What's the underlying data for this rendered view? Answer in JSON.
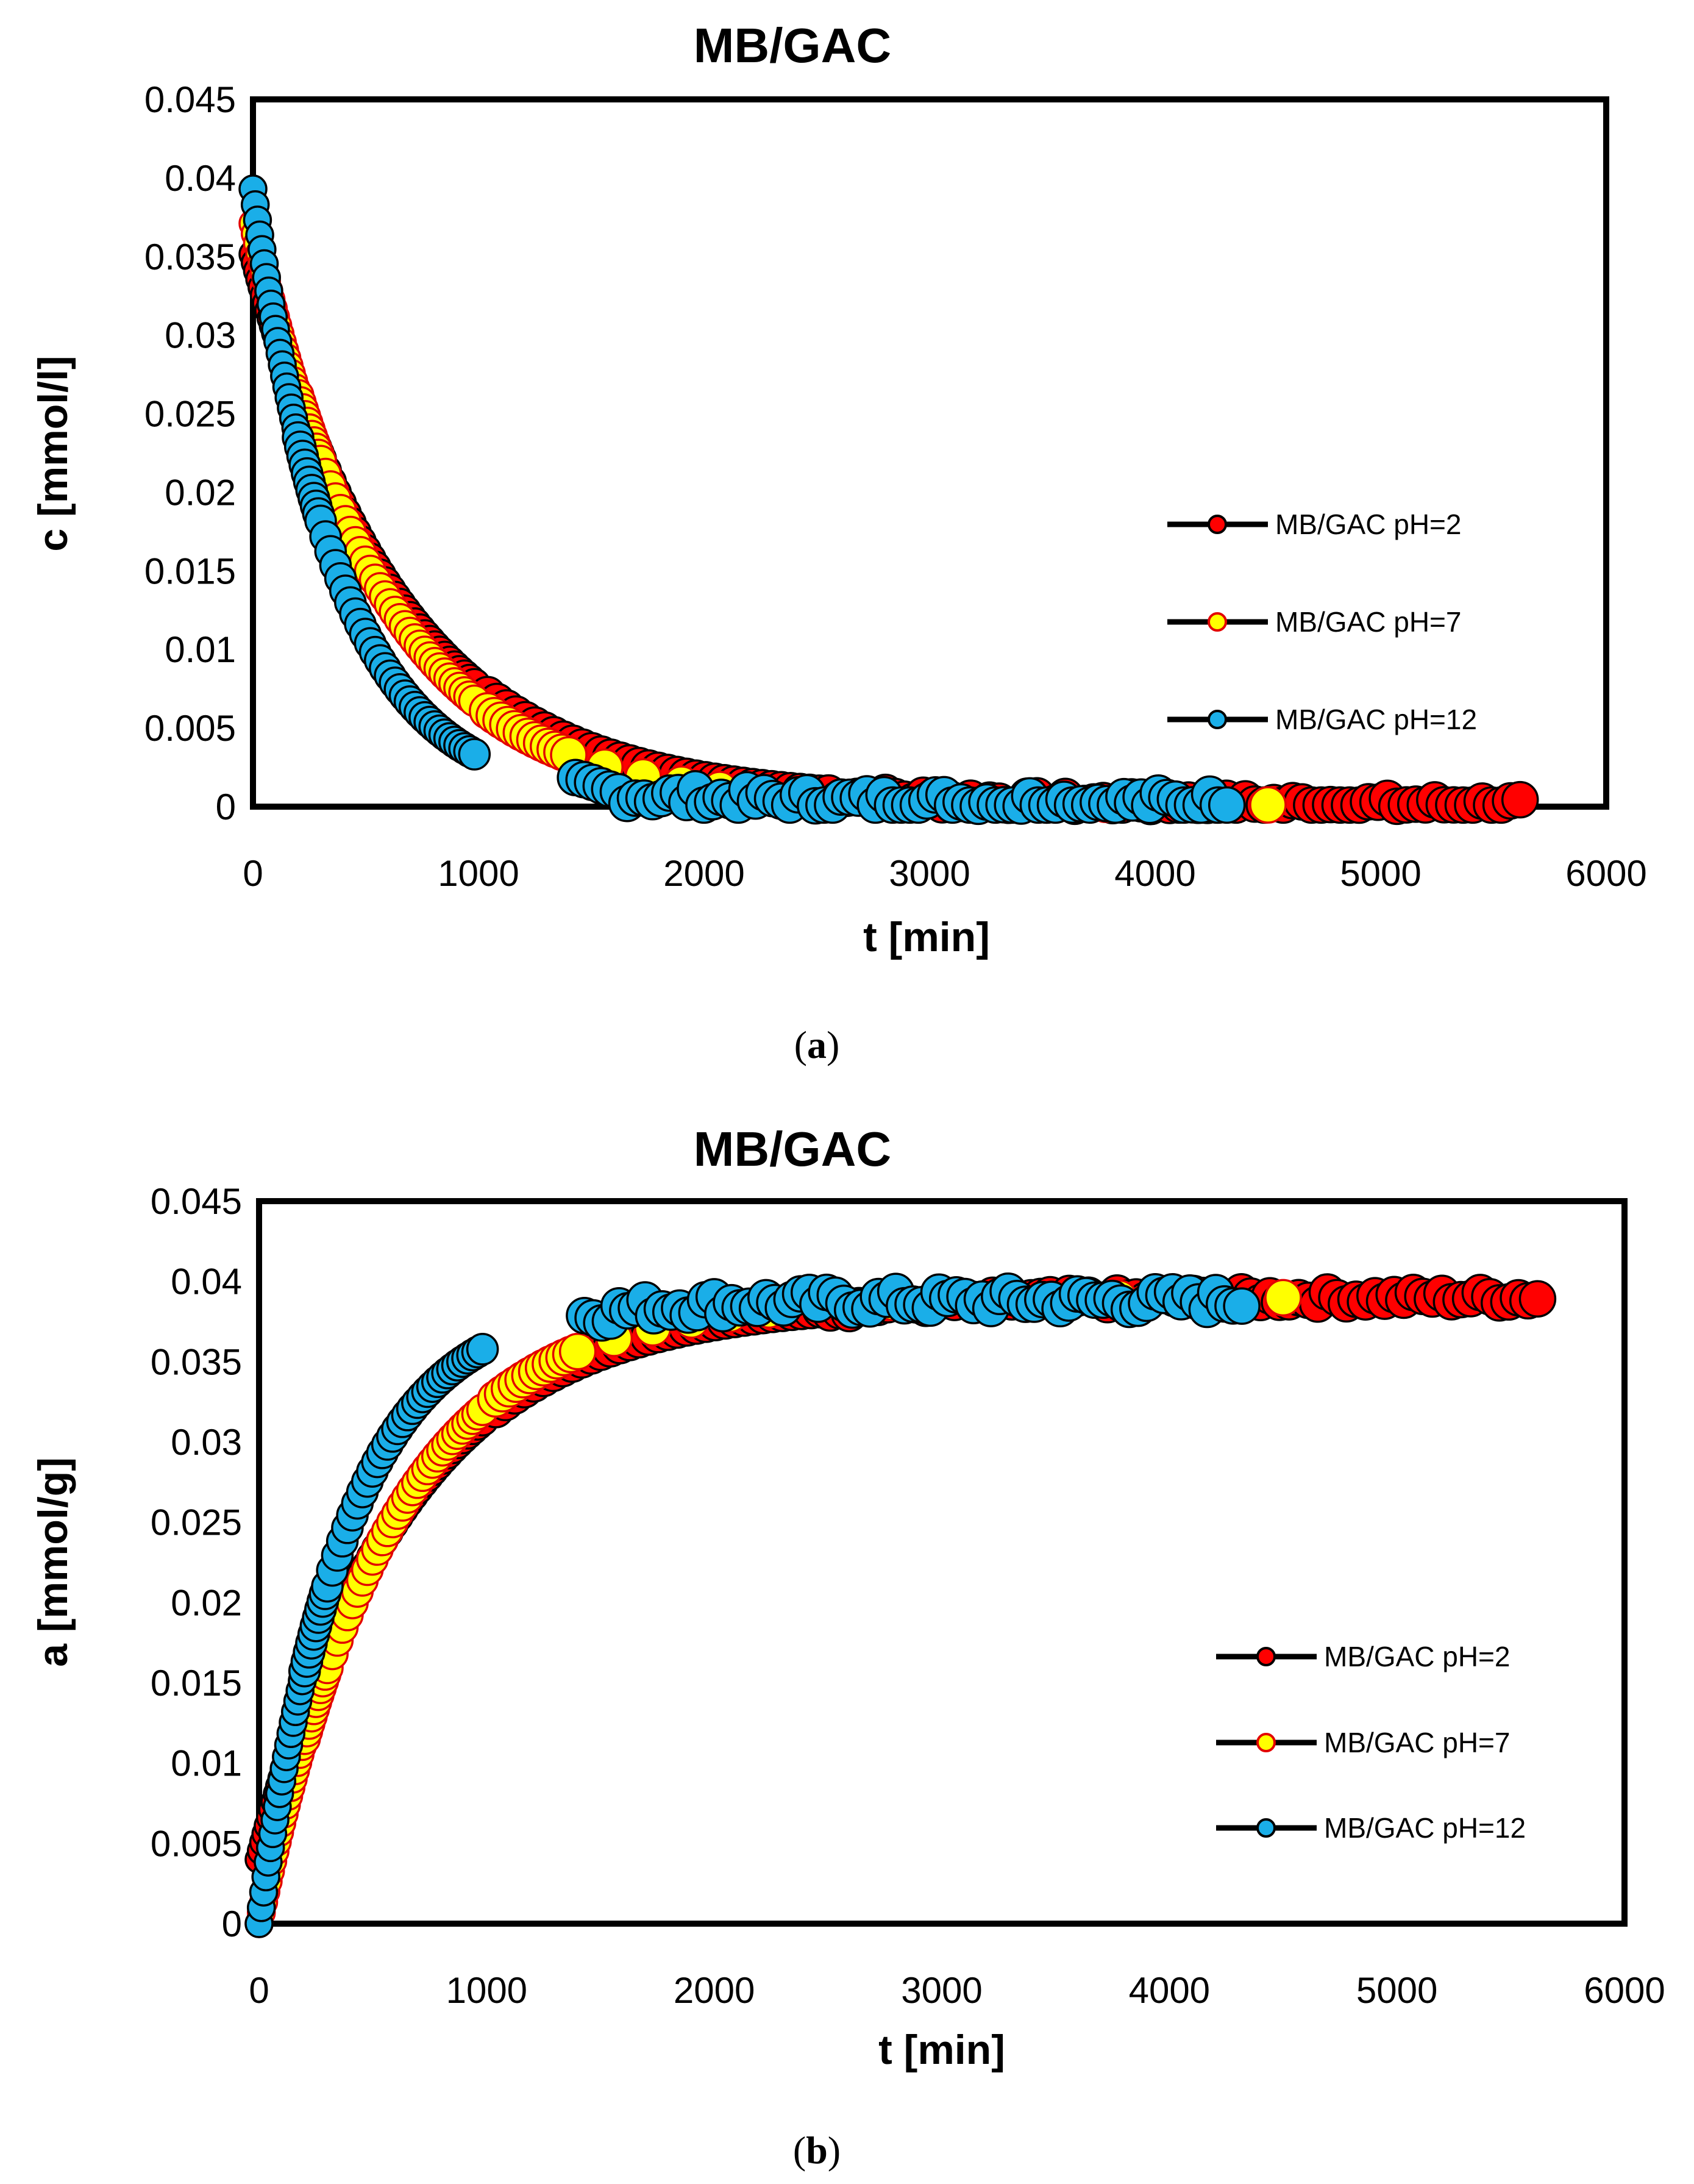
{
  "chart_data": [
    {
      "type": "scatter",
      "panel": "a",
      "caption": {
        "open": "(",
        "letter": "a",
        "close": ")"
      },
      "title": "MB/GAC",
      "xlabel": "t [min]",
      "ylabel": "c [mmol/l]",
      "xlim": [
        0,
        6000
      ],
      "ylim": [
        0,
        0.045
      ],
      "xticks": [
        "0",
        "1000",
        "2000",
        "3000",
        "4000",
        "5000",
        "6000"
      ],
      "yticks": [
        "0",
        "0.005",
        "0.01",
        "0.015",
        "0.02",
        "0.025",
        "0.03",
        "0.035",
        "0.04",
        "0.045"
      ],
      "legend_position": "right",
      "series": [
        {
          "name": "MB/GAC pH=2",
          "color": "#ff0000",
          "model": {
            "kind": "decay",
            "c0": 0.035,
            "k": 0.00155,
            "tmax": 5640,
            "offset": 0.00015
          }
        },
        {
          "name": "MB/GAC pH=7",
          "color": "#ffff00",
          "model": {
            "kind": "decay",
            "c0": 0.037,
            "k": 0.00175,
            "tmax": 4500,
            "offset": 0.0001
          }
        },
        {
          "name": "MB/GAC pH=12",
          "color": "#1aaee8",
          "model": {
            "kind": "decay",
            "c0": 0.039,
            "k": 0.0026,
            "tmax": 4330,
            "offset": 0.0003
          }
        }
      ]
    },
    {
      "type": "scatter",
      "panel": "b",
      "caption": {
        "open": "(",
        "letter": "b",
        "close": ")"
      },
      "title": "MB/GAC",
      "xlabel": "t [min]",
      "ylabel": "a [mmol/g]",
      "xlim": [
        0,
        6000
      ],
      "ylim": [
        0,
        0.045
      ],
      "xticks": [
        "0",
        "1000",
        "2000",
        "3000",
        "4000",
        "5000",
        "6000"
      ],
      "yticks": [
        "0",
        "0.005",
        "0.01",
        "0.015",
        "0.02",
        "0.025",
        "0.03",
        "0.035",
        "0.04",
        "0.045"
      ],
      "legend_position": "bottom-right",
      "series": [
        {
          "name": "MB/GAC pH=2",
          "color": "#ff0000",
          "model": {
            "kind": "growth",
            "qmax": 0.039,
            "k": 0.00155,
            "tmax": 5640,
            "start": 0.004
          }
        },
        {
          "name": "MB/GAC pH=7",
          "color": "#ffff00",
          "model": {
            "kind": "growth",
            "qmax": 0.039,
            "k": 0.00175,
            "tmax": 4500,
            "start": 0.0
          }
        },
        {
          "name": "MB/GAC pH=12",
          "color": "#1aaee8",
          "model": {
            "kind": "growth",
            "qmax": 0.0388,
            "k": 0.0026,
            "tmax": 4330,
            "start": 0.0
          }
        }
      ]
    }
  ]
}
